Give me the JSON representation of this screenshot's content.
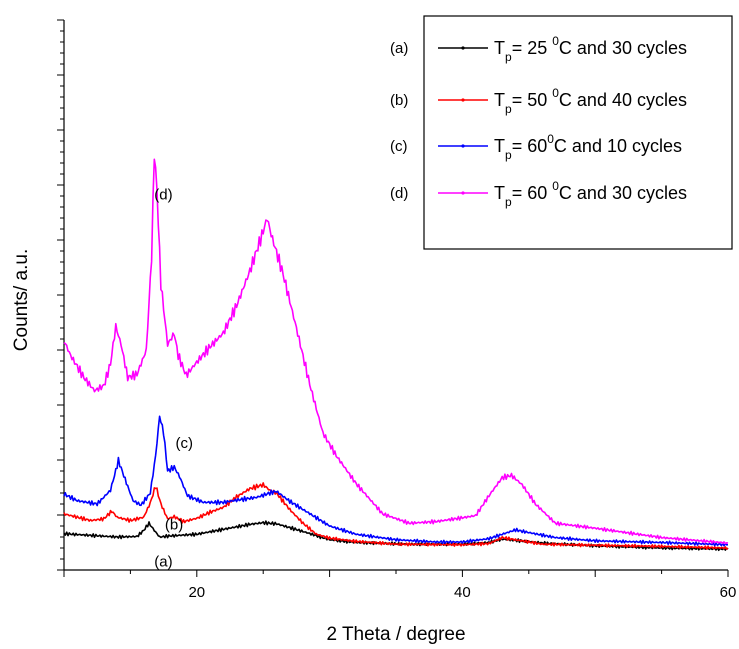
{
  "chart_data": {
    "type": "line",
    "title": "",
    "xlabel": "2 Theta / degree",
    "ylabel": "Counts/ a.u.",
    "xlim": [
      10,
      60
    ],
    "ylim": [
      0,
      100
    ],
    "y_tick_labels_shown": false,
    "x_ticks": [
      {
        "value": 20,
        "label": "20"
      },
      {
        "value": 40,
        "label": "40"
      },
      {
        "value": 60,
        "label": "60"
      }
    ],
    "grid": false,
    "legend_position": "top-right",
    "series": [
      {
        "tag": "(a)",
        "color": "#000000",
        "legend": {
          "pre": "T",
          "sub": "p",
          "mid": "= 25 ",
          "sup": "0",
          "post": "C and 30 cycles"
        },
        "label_at": [
          16.8,
          0.6
        ],
        "points": [
          [
            10,
            6.6
          ],
          [
            12,
            6.3
          ],
          [
            14,
            6.0
          ],
          [
            15.5,
            6.1
          ],
          [
            16,
            7.2
          ],
          [
            16.4,
            8.5
          ],
          [
            16.8,
            7.2
          ],
          [
            17.2,
            6.0
          ],
          [
            18,
            6.2
          ],
          [
            20,
            6.5
          ],
          [
            22,
            7.4
          ],
          [
            24,
            8.3
          ],
          [
            25,
            8.6
          ],
          [
            26,
            8.4
          ],
          [
            28,
            7.0
          ],
          [
            30,
            5.5
          ],
          [
            32,
            5.0
          ],
          [
            36,
            4.7
          ],
          [
            40,
            4.7
          ],
          [
            42,
            5.0
          ],
          [
            43,
            5.6
          ],
          [
            44,
            5.4
          ],
          [
            46,
            4.9
          ],
          [
            50,
            4.4
          ],
          [
            55,
            4.0
          ],
          [
            60,
            3.8
          ]
        ]
      },
      {
        "tag": "(b)",
        "color": "#ff0000",
        "legend": {
          "pre": "T",
          "sub": "p",
          "mid": "= 50 ",
          "sup": "0",
          "post": "C and 40 cycles"
        },
        "label_at": [
          17.6,
          7.4
        ],
        "points": [
          [
            10,
            10.2
          ],
          [
            12,
            9.0
          ],
          [
            13,
            9.3
          ],
          [
            13.6,
            10.7
          ],
          [
            14,
            9.6
          ],
          [
            15,
            9.0
          ],
          [
            16,
            9.6
          ],
          [
            16.5,
            12.2
          ],
          [
            16.9,
            15.3
          ],
          [
            17.3,
            12.0
          ],
          [
            17.8,
            9.3
          ],
          [
            18.3,
            9.7
          ],
          [
            19,
            8.8
          ],
          [
            20,
            9.4
          ],
          [
            21,
            10.5
          ],
          [
            22,
            11.4
          ],
          [
            23,
            13.3
          ],
          [
            24,
            14.8
          ],
          [
            25,
            15.5
          ],
          [
            25.5,
            14.5
          ],
          [
            26,
            14.0
          ],
          [
            27,
            11.0
          ],
          [
            28,
            8.5
          ],
          [
            29,
            6.5
          ],
          [
            30,
            5.8
          ],
          [
            32,
            5.2
          ],
          [
            35,
            4.7
          ],
          [
            40,
            4.6
          ],
          [
            42,
            4.8
          ],
          [
            43,
            5.9
          ],
          [
            44,
            5.5
          ],
          [
            46,
            4.7
          ],
          [
            50,
            4.5
          ],
          [
            55,
            4.3
          ],
          [
            60,
            4.0
          ]
        ]
      },
      {
        "tag": "(c)",
        "color": "#0000ff",
        "legend": {
          "pre": "T",
          "sub": "p",
          "mid": "= 60",
          "sup": "0",
          "post": "C and 10 cycles"
        },
        "label_at": [
          18.4,
          22.2
        ],
        "points": [
          [
            10,
            13.8
          ],
          [
            11,
            12.6
          ],
          [
            12.5,
            12.0
          ],
          [
            13.5,
            14.5
          ],
          [
            14.1,
            19.9
          ],
          [
            14.6,
            16.5
          ],
          [
            15.2,
            12.6
          ],
          [
            15.8,
            11.8
          ],
          [
            16.5,
            14.0
          ],
          [
            16.9,
            20.8
          ],
          [
            17.2,
            28.0
          ],
          [
            17.5,
            25.0
          ],
          [
            17.8,
            18.0
          ],
          [
            18.3,
            18.7
          ],
          [
            18.7,
            17.0
          ],
          [
            19.3,
            13.5
          ],
          [
            20.5,
            12.3
          ],
          [
            22,
            12.3
          ],
          [
            23,
            12.7
          ],
          [
            24.5,
            13.2
          ],
          [
            25.5,
            14.0
          ],
          [
            26,
            14.3
          ],
          [
            27,
            12.5
          ],
          [
            28,
            11.0
          ],
          [
            29,
            9.5
          ],
          [
            30,
            8.0
          ],
          [
            32,
            6.5
          ],
          [
            35,
            5.5
          ],
          [
            38,
            5.1
          ],
          [
            40,
            5.1
          ],
          [
            42,
            5.7
          ],
          [
            43,
            6.5
          ],
          [
            44,
            7.3
          ],
          [
            45,
            6.8
          ],
          [
            47,
            5.9
          ],
          [
            50,
            5.3
          ],
          [
            55,
            5.0
          ],
          [
            60,
            4.6
          ]
        ]
      },
      {
        "tag": "(d)",
        "color": "#ff00ff",
        "legend": {
          "pre": "T",
          "sub": "p",
          "mid": "= 60 ",
          "sup": "0",
          "post": "C and 30 cycles"
        },
        "label_at": [
          16.8,
          67.4
        ],
        "points": [
          [
            10,
            41.7
          ],
          [
            10.5,
            39.0
          ],
          [
            11.5,
            35.0
          ],
          [
            12.3,
            32.6
          ],
          [
            13,
            33.5
          ],
          [
            13.5,
            37.5
          ],
          [
            13.9,
            44.3
          ],
          [
            14.3,
            41.0
          ],
          [
            14.8,
            35.0
          ],
          [
            15.5,
            35.6
          ],
          [
            16.2,
            40.0
          ],
          [
            16.6,
            57.0
          ],
          [
            16.8,
            76.0
          ],
          [
            17.0,
            69.0
          ],
          [
            17.3,
            52.0
          ],
          [
            17.8,
            41.0
          ],
          [
            18.3,
            43.0
          ],
          [
            18.6,
            39.0
          ],
          [
            19.2,
            35.4
          ],
          [
            20,
            37.8
          ],
          [
            21,
            40.6
          ],
          [
            22,
            43.1
          ],
          [
            23,
            48.1
          ],
          [
            24,
            54.4
          ],
          [
            25,
            61.6
          ],
          [
            25.3,
            64.0
          ],
          [
            25.6,
            61.0
          ],
          [
            26.5,
            53.8
          ],
          [
            27.5,
            44.0
          ],
          [
            28.5,
            33.8
          ],
          [
            29.5,
            24.9
          ],
          [
            30.5,
            20.8
          ],
          [
            32,
            15.7
          ],
          [
            34,
            10.2
          ],
          [
            36,
            8.5
          ],
          [
            38,
            8.8
          ],
          [
            40,
            9.5
          ],
          [
            41,
            9.9
          ],
          [
            42,
            13.5
          ],
          [
            43,
            16.8
          ],
          [
            43.7,
            17.2
          ],
          [
            44.5,
            15.5
          ],
          [
            45.5,
            12.0
          ],
          [
            47,
            8.5
          ],
          [
            50,
            7.6
          ],
          [
            55,
            5.9
          ],
          [
            60,
            4.9
          ]
        ]
      }
    ]
  }
}
